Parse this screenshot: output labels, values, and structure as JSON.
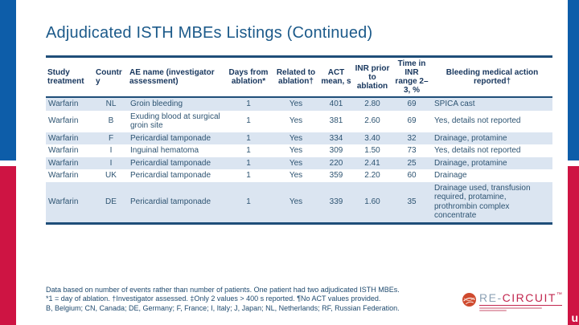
{
  "slide": {
    "title": "Adjudicated ISTH MBEs Listings (Continued)"
  },
  "table": {
    "columns": [
      "Study treatment",
      "Country",
      "AE name (investigator assessment)",
      "Days from ablation*",
      "Related to ablation†",
      "ACT mean, s",
      "INR prior to ablation",
      "Time in INR range 2–3, %",
      "Bleeding medical action reported†"
    ],
    "rows": [
      [
        "Warfarin",
        "NL",
        "Groin bleeding",
        "1",
        "Yes",
        "401",
        "2.80",
        "69",
        "SPICA cast"
      ],
      [
        "Warfarin",
        "B",
        "Exuding blood at surgical groin site",
        "1",
        "Yes",
        "381",
        "2.60",
        "69",
        "Yes, details not reported"
      ],
      [
        "Warfarin",
        "F",
        "Pericardial tamponade",
        "1",
        "Yes",
        "334",
        "3.40",
        "32",
        "Drainage, protamine"
      ],
      [
        "Warfarin",
        "I",
        "Inguinal hematoma",
        "1",
        "Yes",
        "309",
        "1.50",
        "73",
        "Yes, details not reported"
      ],
      [
        "Warfarin",
        "I",
        "Pericardial tamponade",
        "1",
        "Yes",
        "220",
        "2.41",
        "25",
        "Drainage, protamine"
      ],
      [
        "Warfarin",
        "UK",
        "Pericardial tamponade",
        "1",
        "Yes",
        "359",
        "2.20",
        "60",
        "Drainage"
      ],
      [
        "Warfarin",
        "DE",
        "Pericardial tamponade",
        "1",
        "Yes",
        "339",
        "1.60",
        "35",
        "Drainage used, transfusion required, protamine, prothrombin complex concentrate"
      ]
    ]
  },
  "footnotes": {
    "line1": "Data based on number of events rather than number of patients. One patient had two adjudicated ISTH MBEs.",
    "line2": "*1 = day of ablation. †Investigator assessed. ‡Only 2 values > 400 s reported. ¶No ACT values provided.",
    "line3": "B, Belgium; CN, Canada; DE, Germany; F, France; I, Italy; J, Japan; NL, Netherlands; RF, Russian Federation."
  },
  "logo": {
    "prefix": "RE-",
    "name": "CIRCUIT",
    "tm": "™"
  },
  "brand_mark": "u",
  "colors": {
    "accent_blue": "#0d5da9",
    "accent_red": "#ce1443",
    "title_text": "#1c5a8a",
    "header_text": "#17365d",
    "body_text": "#2e5472",
    "row_stripe": "#dbe5f1",
    "logo_red": "#c2264e"
  }
}
